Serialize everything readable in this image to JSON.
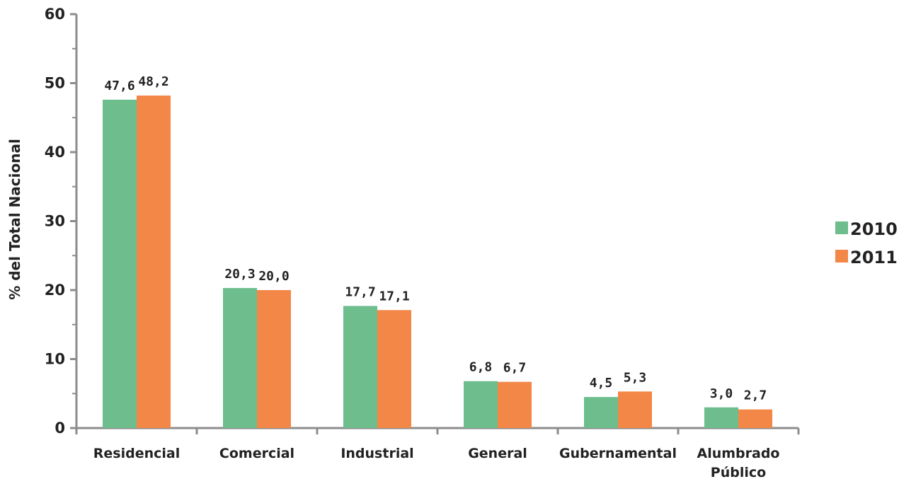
{
  "chart_data": {
    "type": "bar",
    "title": "",
    "xlabel": "",
    "ylabel": "% del Total Nacional",
    "ylim": [
      0,
      60
    ],
    "yticks": [
      0,
      10,
      20,
      30,
      40,
      50,
      60
    ],
    "categories": [
      [
        "Residencial"
      ],
      [
        "Comercial"
      ],
      [
        "Industrial"
      ],
      [
        "General"
      ],
      [
        "Gubernamental"
      ],
      [
        "Alumbrado",
        "Público"
      ]
    ],
    "series": [
      {
        "name": "2010",
        "color": "#6dbd8d",
        "values": [
          47.6,
          20.3,
          17.7,
          6.8,
          4.5,
          3.0
        ],
        "labels": [
          "47,6",
          "20,3",
          "17,7",
          "6,8",
          "4,5",
          "3,0"
        ]
      },
      {
        "name": "2011",
        "color": "#f38747",
        "values": [
          48.2,
          20.0,
          17.1,
          6.7,
          5.3,
          2.7
        ],
        "labels": [
          "48,2",
          "20,0",
          "17,1",
          "6,7",
          "5,3",
          "2,7"
        ]
      }
    ],
    "grid": false,
    "legend_position": "right"
  }
}
